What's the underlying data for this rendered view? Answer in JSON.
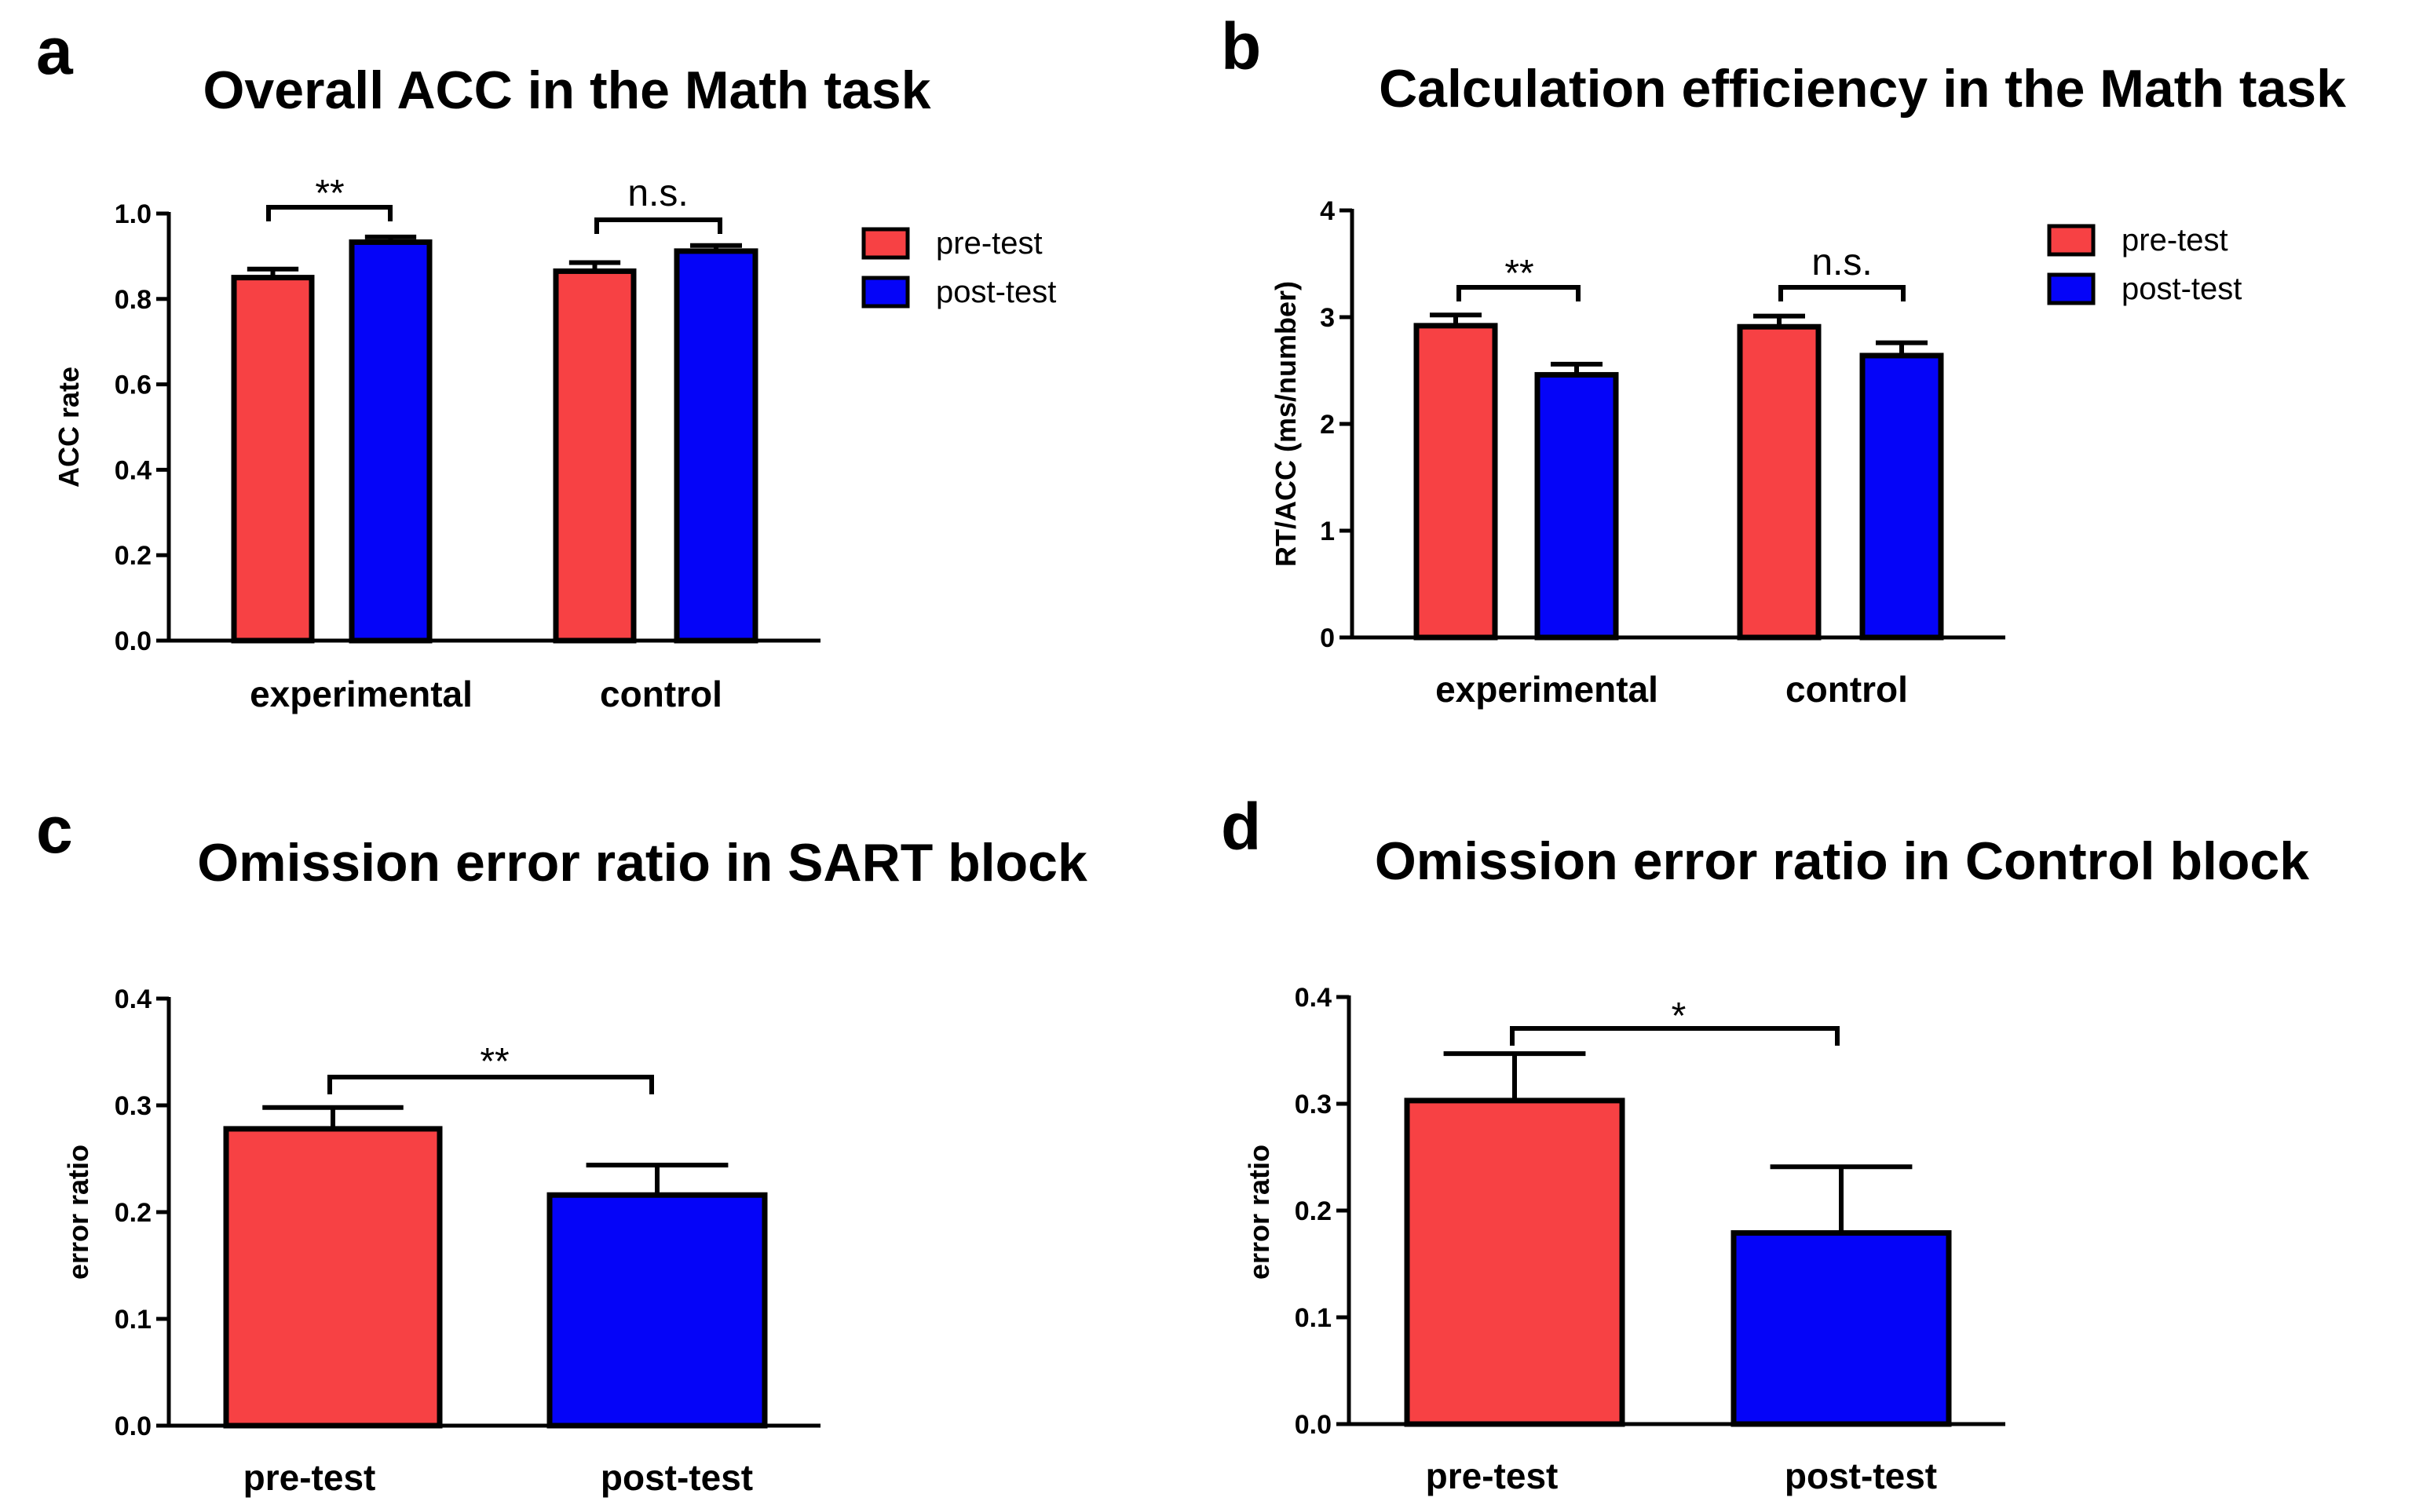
{
  "colors": {
    "pre": "#f74144",
    "post": "#0504f8",
    "ink": "#000000"
  },
  "chart_data": [
    {
      "letter": "a",
      "type": "bar",
      "title": "Overall ACC in the Math task",
      "xlabel": "",
      "ylabel": "ACC rate",
      "ylim": [
        0,
        1.0
      ],
      "yticks": [
        "0.0",
        "0.2",
        "0.4",
        "0.6",
        "0.8",
        "1.0"
      ],
      "categories": [
        "experimental",
        "control"
      ],
      "series": [
        {
          "name": "pre-test",
          "values": [
            0.85,
            0.865
          ],
          "errors": [
            0.02,
            0.02
          ]
        },
        {
          "name": "post-test",
          "values": [
            0.933,
            0.912
          ],
          "errors": [
            0.012,
            0.013
          ]
        }
      ],
      "legend": [
        "pre-test",
        "post-test"
      ],
      "legend_position": "top-right",
      "annotations": [
        "**",
        "n.s."
      ]
    },
    {
      "letter": "b",
      "type": "bar",
      "title": "Calculation efficiency in the Math task",
      "xlabel": "",
      "ylabel": "RT/ACC (ms/number)",
      "ylim": [
        0,
        4
      ],
      "yticks": [
        "0",
        "1",
        "2",
        "3",
        "4"
      ],
      "categories": [
        "experimental",
        "control"
      ],
      "series": [
        {
          "name": "pre-test",
          "values": [
            2.92,
            2.91
          ],
          "errors": [
            0.1,
            0.1
          ]
        },
        {
          "name": "post-test",
          "values": [
            2.46,
            2.64
          ],
          "errors": [
            0.1,
            0.12
          ]
        }
      ],
      "legend": [
        "pre-test",
        "post-test"
      ],
      "legend_position": "top-right",
      "annotations": [
        "**",
        "n.s."
      ]
    },
    {
      "letter": "c",
      "type": "bar",
      "title": "Omission error ratio in SART block",
      "xlabel": "",
      "ylabel": "error ratio",
      "ylim": [
        0,
        0.4
      ],
      "yticks": [
        "0.0",
        "0.1",
        "0.2",
        "0.3",
        "0.4"
      ],
      "categories": [
        "pre-test",
        "post-test"
      ],
      "series": [
        {
          "name": "error ratio",
          "values": [
            0.278,
            0.216
          ],
          "errors": [
            0.02,
            0.028
          ]
        }
      ],
      "annotations": [
        "**"
      ]
    },
    {
      "letter": "d",
      "type": "bar",
      "title": "Omission error ratio in Control block",
      "xlabel": "",
      "ylabel": "error ratio",
      "ylim": [
        0,
        0.4
      ],
      "yticks": [
        "0.0",
        "0.1",
        "0.2",
        "0.3",
        "0.4"
      ],
      "categories": [
        "pre-test",
        "post-test"
      ],
      "series": [
        {
          "name": "error ratio",
          "values": [
            0.303,
            0.179
          ],
          "errors": [
            0.044,
            0.062
          ]
        }
      ],
      "annotations": [
        "*"
      ]
    }
  ]
}
